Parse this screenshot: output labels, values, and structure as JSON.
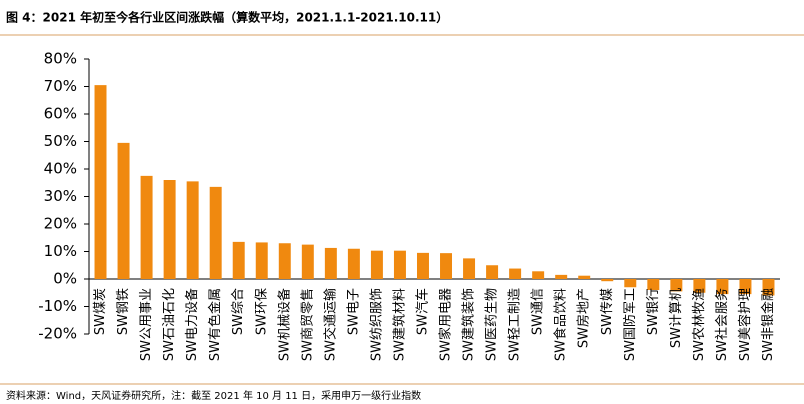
{
  "chart_data": {
    "type": "bar",
    "title": "图 4：2021 年初至今各行业区间涨跌幅（算数平均，2021.1.1-2021.10.11）",
    "source": "资料来源：Wind，天风证券研究所，注：截至 2021 年 10 月 11 日，采用申万一级行业指数",
    "categories": [
      "SW煤炭",
      "SW钢铁",
      "SW公用事业",
      "SW石油石化",
      "SW电力设备",
      "SW有色金属",
      "SW综合",
      "SW环保",
      "SW机械设备",
      "SW商贸零售",
      "SW交通运输",
      "SW电子",
      "SW纺织服饰",
      "SW建筑材料",
      "SW汽车",
      "SW家用电器",
      "SW建筑装饰",
      "SW医药生物",
      "SW轻工制造",
      "SW通信",
      "SW食品饮料",
      "SW房地产",
      "SW传媒",
      "SW国防军工",
      "SW银行",
      "SW计算机",
      "SW农林牧渔",
      "SW社会服务",
      "SW美容护理",
      "SW非银金融"
    ],
    "values": [
      70.5,
      49.5,
      37.5,
      36,
      35.5,
      33.5,
      13.5,
      13.3,
      13,
      12.5,
      11.3,
      11,
      10.3,
      10.3,
      9.5,
      9.4,
      7.5,
      5,
      3.8,
      2.8,
      1.5,
      1.2,
      -0.8,
      -3,
      -4,
      -4.5,
      -5,
      -5.5,
      -5.5,
      -6
    ],
    "color": "#f0890f",
    "ylim": [
      -20,
      80
    ],
    "yticks": [
      {
        "value": -20,
        "label": "-20%"
      },
      {
        "value": -10,
        "label": "-10%"
      },
      {
        "value": 0,
        "label": "0%"
      },
      {
        "value": 10,
        "label": "10%"
      },
      {
        "value": 20,
        "label": "20%"
      },
      {
        "value": 30,
        "label": "30%"
      },
      {
        "value": 40,
        "label": "40%"
      },
      {
        "value": 50,
        "label": "50%"
      },
      {
        "value": 60,
        "label": "60%"
      },
      {
        "value": 70,
        "label": "70%"
      },
      {
        "value": 80,
        "label": "80%"
      }
    ]
  }
}
